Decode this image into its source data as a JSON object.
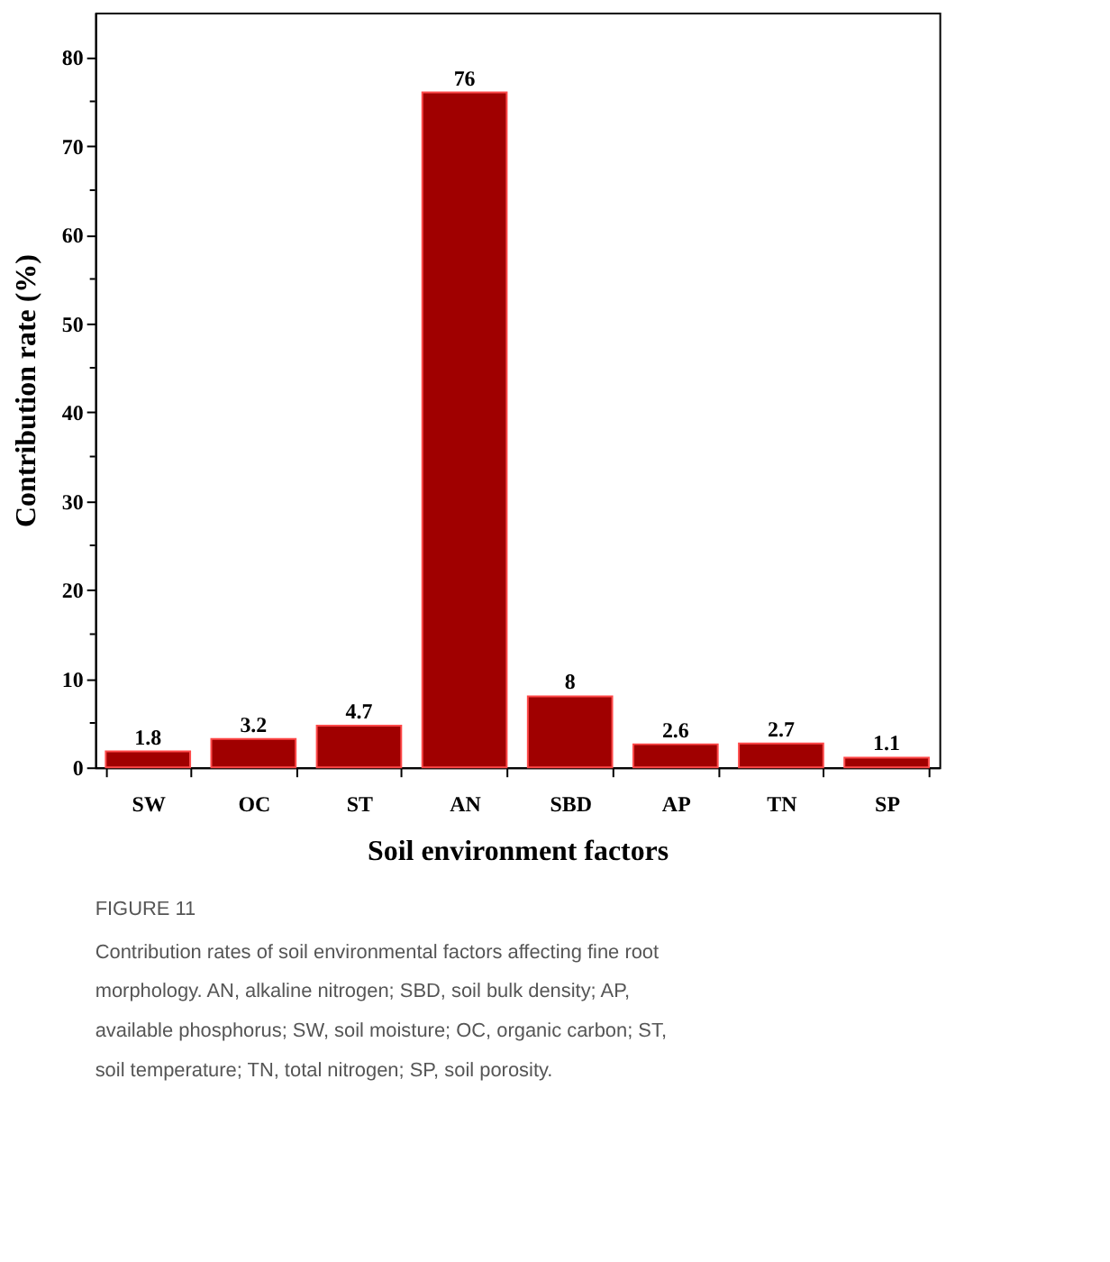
{
  "chart_data": {
    "type": "bar",
    "categories": [
      "SW",
      "OC",
      "ST",
      "AN",
      "SBD",
      "AP",
      "TN",
      "SP"
    ],
    "values": [
      1.8,
      3.2,
      4.7,
      76,
      8,
      2.6,
      2.7,
      1.1
    ],
    "color": "#a00000",
    "data_labels": true,
    "xlabel": "Soil environment factors",
    "ylabel": "Contribution rate (%)",
    "ylim": [
      0,
      85
    ],
    "yticks": [
      0,
      {
        "value": 5,
        "label": null
      },
      10,
      {
        "value": 15,
        "label": null
      },
      20,
      {
        "value": 25,
        "label": null
      },
      30,
      {
        "value": 35,
        "label": null
      },
      40,
      {
        "value": 45,
        "label": null
      },
      50,
      {
        "value": 55,
        "label": null
      },
      60,
      {
        "value": 65,
        "label": null
      },
      70,
      {
        "value": 75,
        "label": null
      },
      80
    ],
    "grid": false,
    "annotations": [
      "FIGURE 11",
      "Contribution rates of soil environmental factors affecting fine root morphology. AN, alkaline nitrogen; SBD, soil bulk density; AP, available phosphorus; SW, soil moisture; OC, organic carbon; ST, soil temperature; TN, total nitrogen; SP, soil porosity."
    ]
  }
}
